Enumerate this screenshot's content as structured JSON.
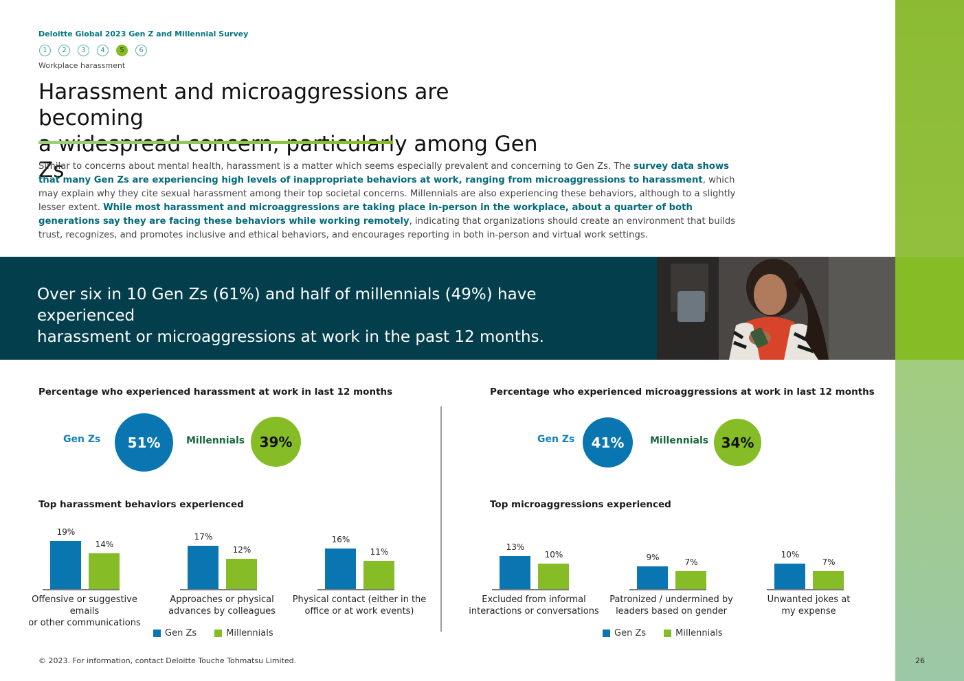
{
  "header": {
    "survey_title": "Deloitte Global 2023 Gen Z and Millennial Survey",
    "steps": [
      "1",
      "2",
      "3",
      "4",
      "5",
      "6"
    ],
    "active_step": "5",
    "section_label": "Workplace harassment"
  },
  "headline": {
    "line1": "Harassment and microaggressions are becoming",
    "line2": "a widespread concern, particularly among Gen Zs"
  },
  "intro": {
    "p1": "Similar to concerns about mental health, harassment is a matter which seems especially prevalent and concerning to Gen Zs. The ",
    "b1": "survey data shows that many Gen Zs are experiencing high levels of inappropriate behaviors at work, ranging from microaggressions to harassment",
    "p2": ", which may explain why they cite sexual harassment among their top societal concerns. Millennials are also experiencing these behaviors, although to a slightly lesser extent. ",
    "b2": "While most harassment and microaggressions are taking place in-person in the workplace, about a quarter of both generations say they are facing these behaviors while working remotely",
    "p3": ", indicating that organizations should create an environment that builds trust, recognizes, and promotes inclusive and ethical behaviors, and encourages reporting in both in-person and virtual work settings."
  },
  "banner": {
    "line1": "Over six in 10 Gen Zs (61%) and half of millennials (49%) have experienced",
    "line2": "harassment or microaggressions at work in the past 12 months."
  },
  "harassment": {
    "title": "Percentage who experienced  harassment at work in last 12 months",
    "genz_label": "Gen Zs",
    "genz_value": "51%",
    "mill_label": "Millennials",
    "mill_value": "39%",
    "behaviors_title": "Top harassment behaviors experienced"
  },
  "microaggressions": {
    "title": "Percentage who experienced microaggressions at work in last 12 months",
    "genz_label": "Gen Zs",
    "genz_value": "41%",
    "mill_label": "Millennials",
    "mill_value": "34%",
    "behaviors_title": "Top microaggressions experienced"
  },
  "legend": {
    "genz": "Gen Zs",
    "mill": "Millennials"
  },
  "colors": {
    "genz": "#0a76b1",
    "mill": "#86bc25",
    "teal": "#033e4c"
  },
  "chart_data": [
    {
      "type": "bar",
      "title": "Top harassment behaviors experienced",
      "categories": [
        [
          "Offensive or suggestive emails",
          "or other communications"
        ],
        [
          "Approaches or physical",
          "advances by colleagues"
        ],
        [
          "Physical contact (either in the",
          "office or at work events)"
        ]
      ],
      "series": [
        {
          "name": "Gen Zs",
          "values": [
            19,
            17,
            16
          ],
          "labels": [
            "19%",
            "17%",
            "16%"
          ]
        },
        {
          "name": "Millennials",
          "values": [
            14,
            12,
            11
          ],
          "labels": [
            "14%",
            "12%",
            "11%"
          ]
        }
      ]
    },
    {
      "type": "bar",
      "title": "Top microaggressions experienced",
      "categories": [
        [
          "Excluded from informal",
          "interactions or conversations"
        ],
        [
          "Patronized / undermined by",
          "leaders based on gender"
        ],
        [
          "Unwanted jokes at",
          "my expense"
        ]
      ],
      "series": [
        {
          "name": "Gen Zs",
          "values": [
            13,
            9,
            10
          ],
          "labels": [
            "13%",
            "9%",
            "10%"
          ]
        },
        {
          "name": "Millennials",
          "values": [
            10,
            7,
            7
          ],
          "labels": [
            "10%",
            "7%",
            "7%"
          ]
        }
      ]
    }
  ],
  "footer": "© 2023. For information, contact Deloitte Touche Tohmatsu Limited.",
  "page_number": "26"
}
